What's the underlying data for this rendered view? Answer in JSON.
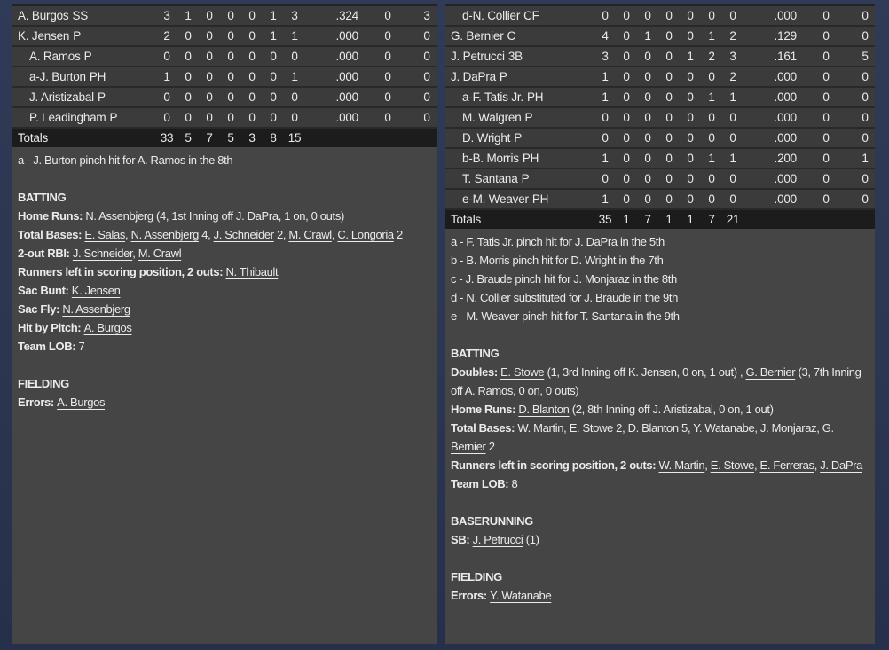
{
  "colors": {
    "page_bg": "#2b3650",
    "row_bg": "#3b3b3b",
    "row_separator": "#292929",
    "totals_row_bg": "#1c1c1c",
    "notes_bg": "#454545",
    "text": "#ebebeb"
  },
  "panels": [
    {
      "side": "away",
      "rows": [
        {
          "indent": false,
          "prefix": "",
          "name": "A. Burgos",
          "pos": "SS",
          "stats": [
            "3",
            "1",
            "0",
            "0",
            "0",
            "1",
            "3",
            ".324",
            "0",
            "3"
          ]
        },
        {
          "indent": false,
          "prefix": "",
          "name": "K. Jensen",
          "pos": "P",
          "stats": [
            "2",
            "0",
            "0",
            "0",
            "0",
            "1",
            "1",
            ".000",
            "0",
            "0"
          ]
        },
        {
          "indent": true,
          "prefix": "",
          "name": "A. Ramos",
          "pos": "P",
          "stats": [
            "0",
            "0",
            "0",
            "0",
            "0",
            "0",
            "0",
            ".000",
            "0",
            "0"
          ]
        },
        {
          "indent": true,
          "prefix": "a-",
          "name": "J. Burton",
          "pos": "PH",
          "stats": [
            "1",
            "0",
            "0",
            "0",
            "0",
            "0",
            "1",
            ".000",
            "0",
            "0"
          ]
        },
        {
          "indent": true,
          "prefix": "",
          "name": "J. Aristizabal",
          "pos": "P",
          "stats": [
            "0",
            "0",
            "0",
            "0",
            "0",
            "0",
            "0",
            ".000",
            "0",
            "0"
          ]
        },
        {
          "indent": true,
          "prefix": "",
          "name": "P. Leadingham",
          "pos": "P",
          "stats": [
            "0",
            "0",
            "0",
            "0",
            "0",
            "0",
            "0",
            ".000",
            "0",
            "0"
          ]
        }
      ],
      "totals": {
        "label": "Totals",
        "stats": [
          "33",
          "5",
          "7",
          "5",
          "3",
          "8",
          "15",
          "",
          "",
          ""
        ]
      },
      "notes": [
        [
          {
            "t": "a - J. Burton pinch hit for A. Ramos in the 8th",
            "s": ""
          }
        ],
        [],
        [
          {
            "t": "BATTING",
            "s": "b"
          }
        ],
        [
          {
            "t": "Home Runs: ",
            "s": "b"
          },
          {
            "t": "N. Assenbjerg",
            "s": "u"
          },
          {
            "t": " (4, 1st Inning off J. DaPra, 1 on, 0 outs)",
            "s": ""
          }
        ],
        [
          {
            "t": "Total Bases: ",
            "s": "b"
          },
          {
            "t": "E. Salas",
            "s": "u"
          },
          {
            "t": ", ",
            "s": ""
          },
          {
            "t": "N. Assenbjerg",
            "s": "u"
          },
          {
            "t": " 4, ",
            "s": ""
          },
          {
            "t": "J. Schneider",
            "s": "u"
          },
          {
            "t": " 2, ",
            "s": ""
          },
          {
            "t": "M. Crawl",
            "s": "u"
          },
          {
            "t": ", ",
            "s": ""
          },
          {
            "t": "C. Longoria",
            "s": "u"
          },
          {
            "t": " 2",
            "s": ""
          }
        ],
        [
          {
            "t": "2-out RBI: ",
            "s": "b"
          },
          {
            "t": "J. Schneider",
            "s": "u"
          },
          {
            "t": ", ",
            "s": ""
          },
          {
            "t": "M. Crawl",
            "s": "u"
          }
        ],
        [
          {
            "t": "Runners left in scoring position, 2 outs: ",
            "s": "b"
          },
          {
            "t": "N. Thibault",
            "s": "u"
          }
        ],
        [
          {
            "t": "Sac Bunt: ",
            "s": "b"
          },
          {
            "t": "K. Jensen",
            "s": "u"
          }
        ],
        [
          {
            "t": "Sac Fly: ",
            "s": "b"
          },
          {
            "t": "N. Assenbjerg",
            "s": "u"
          }
        ],
        [
          {
            "t": "Hit by Pitch: ",
            "s": "b"
          },
          {
            "t": "A. Burgos",
            "s": "u"
          }
        ],
        [
          {
            "t": "Team LOB: ",
            "s": "b"
          },
          {
            "t": "7",
            "s": ""
          }
        ],
        [],
        [
          {
            "t": "FIELDING",
            "s": "b"
          }
        ],
        [
          {
            "t": "Errors: ",
            "s": "b"
          },
          {
            "t": "A. Burgos",
            "s": "u"
          }
        ]
      ]
    },
    {
      "side": "home",
      "rows": [
        {
          "indent": true,
          "prefix": "d-",
          "name": "N. Collier",
          "pos": "CF",
          "stats": [
            "0",
            "0",
            "0",
            "0",
            "0",
            "0",
            "0",
            ".000",
            "0",
            "0"
          ]
        },
        {
          "indent": false,
          "prefix": "",
          "name": "G. Bernier",
          "pos": "C",
          "stats": [
            "4",
            "0",
            "1",
            "0",
            "0",
            "1",
            "2",
            ".129",
            "0",
            "0"
          ]
        },
        {
          "indent": false,
          "prefix": "",
          "name": "J. Petrucci",
          "pos": "3B",
          "stats": [
            "3",
            "0",
            "0",
            "0",
            "1",
            "2",
            "3",
            ".161",
            "0",
            "5"
          ]
        },
        {
          "indent": false,
          "prefix": "",
          "name": "J. DaPra",
          "pos": "P",
          "stats": [
            "1",
            "0",
            "0",
            "0",
            "0",
            "0",
            "2",
            ".000",
            "0",
            "0"
          ]
        },
        {
          "indent": true,
          "prefix": "a-",
          "name": "F. Tatis Jr.",
          "pos": "PH",
          "stats": [
            "1",
            "0",
            "0",
            "0",
            "0",
            "1",
            "1",
            ".000",
            "0",
            "0"
          ]
        },
        {
          "indent": true,
          "prefix": "",
          "name": "M. Walgren",
          "pos": "P",
          "stats": [
            "0",
            "0",
            "0",
            "0",
            "0",
            "0",
            "0",
            ".000",
            "0",
            "0"
          ]
        },
        {
          "indent": true,
          "prefix": "",
          "name": "D. Wright",
          "pos": "P",
          "stats": [
            "0",
            "0",
            "0",
            "0",
            "0",
            "0",
            "0",
            ".000",
            "0",
            "0"
          ]
        },
        {
          "indent": true,
          "prefix": "b-",
          "name": "B. Morris",
          "pos": "PH",
          "stats": [
            "1",
            "0",
            "0",
            "0",
            "0",
            "1",
            "1",
            ".200",
            "0",
            "1"
          ]
        },
        {
          "indent": true,
          "prefix": "",
          "name": "T. Santana",
          "pos": "P",
          "stats": [
            "0",
            "0",
            "0",
            "0",
            "0",
            "0",
            "0",
            ".000",
            "0",
            "0"
          ]
        },
        {
          "indent": true,
          "prefix": "e-",
          "name": "M. Weaver",
          "pos": "PH",
          "stats": [
            "1",
            "0",
            "0",
            "0",
            "0",
            "0",
            "0",
            ".000",
            "0",
            "0"
          ]
        }
      ],
      "totals": {
        "label": "Totals",
        "stats": [
          "35",
          "1",
          "7",
          "1",
          "1",
          "7",
          "21",
          "",
          "",
          ""
        ]
      },
      "notes": [
        [
          {
            "t": "a - F. Tatis Jr. pinch hit for J. DaPra in the 5th",
            "s": ""
          }
        ],
        [
          {
            "t": "b - B. Morris pinch hit for D. Wright in the 7th",
            "s": ""
          }
        ],
        [
          {
            "t": "c - J. Braude pinch hit for J. Monjaraz in the 8th",
            "s": ""
          }
        ],
        [
          {
            "t": "d - N. Collier substituted for J. Braude in the 9th",
            "s": ""
          }
        ],
        [
          {
            "t": "e - M. Weaver pinch hit for T. Santana in the 9th",
            "s": ""
          }
        ],
        [],
        [
          {
            "t": "BATTING",
            "s": "b"
          }
        ],
        [
          {
            "t": "Doubles: ",
            "s": "b"
          },
          {
            "t": "E. Stowe",
            "s": "u"
          },
          {
            "t": " (1, 3rd Inning off K. Jensen, 0 on, 1 out) , ",
            "s": ""
          },
          {
            "t": "G. Bernier",
            "s": "u"
          },
          {
            "t": " (3, 7th Inning off A. Ramos, 0 on, 0 outs)",
            "s": ""
          }
        ],
        [
          {
            "t": "Home Runs: ",
            "s": "b"
          },
          {
            "t": "D. Blanton",
            "s": "u"
          },
          {
            "t": " (2, 8th Inning off J. Aristizabal, 0 on, 1 out)",
            "s": ""
          }
        ],
        [
          {
            "t": "Total Bases: ",
            "s": "b"
          },
          {
            "t": "W. Martin",
            "s": "u"
          },
          {
            "t": ", ",
            "s": ""
          },
          {
            "t": "E. Stowe",
            "s": "u"
          },
          {
            "t": " 2, ",
            "s": ""
          },
          {
            "t": "D. Blanton",
            "s": "u"
          },
          {
            "t": " 5, ",
            "s": ""
          },
          {
            "t": "Y. Watanabe",
            "s": "u"
          },
          {
            "t": ", ",
            "s": ""
          },
          {
            "t": "J. Monjaraz",
            "s": "u"
          },
          {
            "t": ", ",
            "s": ""
          },
          {
            "t": "G. Bernier",
            "s": "u"
          },
          {
            "t": " 2",
            "s": ""
          }
        ],
        [
          {
            "t": "Runners left in scoring position, 2 outs: ",
            "s": "b"
          },
          {
            "t": "W. Martin",
            "s": "u"
          },
          {
            "t": ", ",
            "s": ""
          },
          {
            "t": "E. Stowe",
            "s": "u"
          },
          {
            "t": ", ",
            "s": ""
          },
          {
            "t": "E. Ferreras",
            "s": "u"
          },
          {
            "t": ", ",
            "s": ""
          },
          {
            "t": "J. DaPra",
            "s": "u"
          }
        ],
        [
          {
            "t": "Team LOB: ",
            "s": "b"
          },
          {
            "t": "8",
            "s": ""
          }
        ],
        [],
        [
          {
            "t": "BASERUNNING",
            "s": "b"
          }
        ],
        [
          {
            "t": "SB: ",
            "s": "b"
          },
          {
            "t": "J. Petrucci",
            "s": "u"
          },
          {
            "t": " (1)",
            "s": ""
          }
        ],
        [],
        [
          {
            "t": "FIELDING",
            "s": "b"
          }
        ],
        [
          {
            "t": "Errors: ",
            "s": "b"
          },
          {
            "t": "Y. Watanabe",
            "s": "u"
          }
        ]
      ]
    }
  ]
}
